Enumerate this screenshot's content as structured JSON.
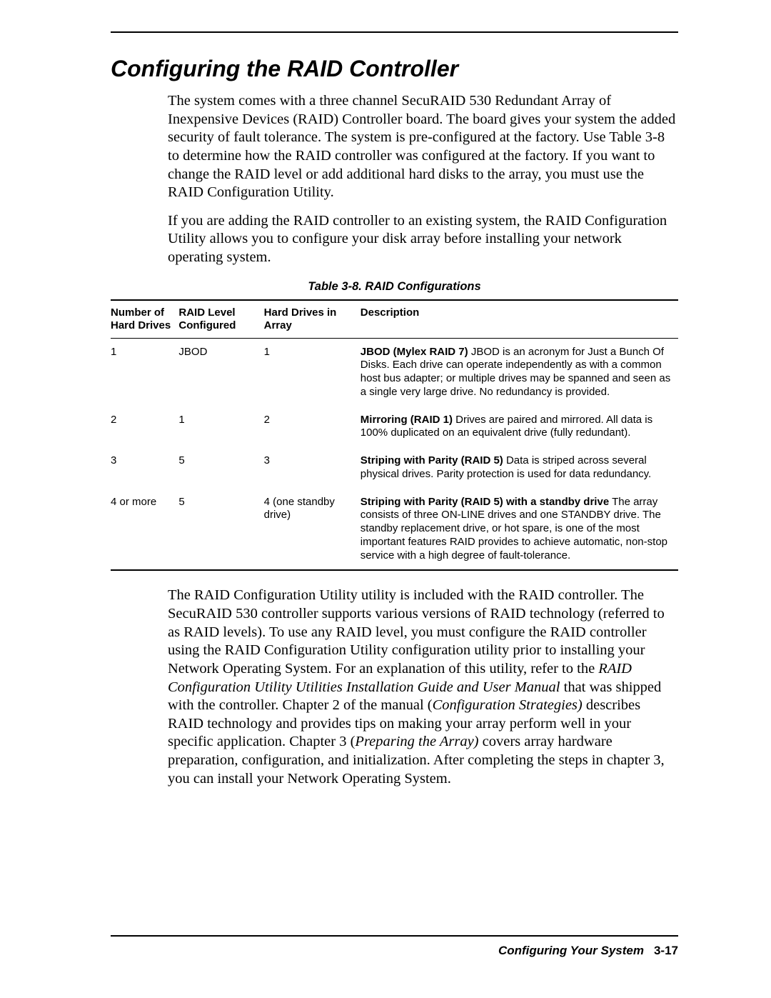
{
  "heading": "Configuring the RAID Controller",
  "para1": "The system comes with a three channel SecuRAID 530 Redundant Array of Inexpensive Devices (RAID) Controller board. The board gives your system the added security of fault tolerance. The system is pre-configured at the factory. Use Table 3-8 to determine how the RAID controller was configured at the factory. If you want to change the RAID level or add additional hard disks to the array, you must use the RAID Configuration Utility.",
  "para2": "If you are adding the RAID controller to an existing system, the RAID Configuration Utility allows you to configure your disk array before installing your network operating system.",
  "table_caption": "Table 3-8.  RAID Configurations",
  "columns": {
    "c1": "Number of Hard Drives",
    "c2": "RAID Level Configured",
    "c3": "Hard Drives in Array",
    "c4": "Description"
  },
  "rows": [
    {
      "num": "1",
      "level": "JBOD",
      "drives": "1",
      "desc_bold": "JBOD (Mylex RAID 7)",
      "desc_rest": "  JBOD is an acronym for Just a Bunch Of Disks. Each drive can operate independently as with a common host bus adapter; or multiple drives may be spanned and seen as a single very large drive. No redundancy is provided."
    },
    {
      "num": "2",
      "level": "1",
      "drives": "2",
      "desc_bold": "Mirroring (RAID 1)",
      "desc_rest": "  Drives are paired and mirrored. All data is 100% duplicated on an equivalent drive (fully redundant)."
    },
    {
      "num": "3",
      "level": "5",
      "drives": "3",
      "desc_bold": "Striping with Parity (RAID 5)",
      "desc_rest": "  Data is striped across several physical drives. Parity protection is used for data redundancy."
    },
    {
      "num": "4 or more",
      "level": "5",
      "drives": "4 (one standby drive)",
      "desc_bold": "Striping with Parity (RAID 5) with a standby drive",
      "desc_rest": "  The array consists of three ON-LINE drives and one STANDBY drive. The standby replacement drive, or hot spare, is one of the most important features RAID provides to achieve automatic, non-stop service with a high degree of fault-tolerance."
    }
  ],
  "para3_a": "The RAID Configuration Utility utility is included with the RAID controller. The SecuRAID 530 controller supports various versions of RAID technology (referred to as RAID levels). To use any RAID level, you must configure the RAID controller using the RAID Configuration Utility configuration utility prior to installing your Network Operating System. For an explanation of this utility, refer to the ",
  "para3_i1": "RAID Configuration Utility Utilities Installation Guide and User Manual",
  "para3_b": " that was shipped with the controller. Chapter 2 of the manual (",
  "para3_i2": "Configuration Strategies)",
  "para3_c": " describes RAID technology and provides tips on making your array perform well in your specific application. Chapter 3 (",
  "para3_i3": "Preparing the Array)",
  "para3_d": " covers array hardware preparation, configuration, and initialization. After completing the steps in chapter 3, you can install your Network Operating System.",
  "footer_title": "Configuring Your System",
  "footer_page": "3-17"
}
